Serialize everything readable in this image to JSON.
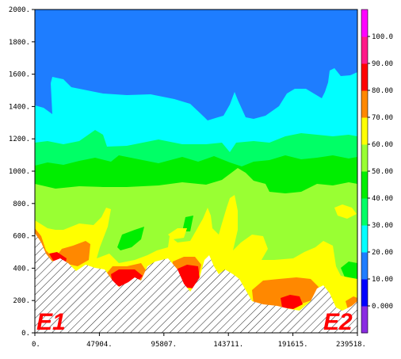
{
  "chart_data": {
    "type": "filled-contour",
    "title": "",
    "xlabel": "",
    "ylabel": "",
    "x_ticks": [
      "0.",
      "47904.",
      "95807.",
      "143711.",
      "191615.",
      "239518."
    ],
    "y_ticks": [
      "0.",
      "200.",
      "400.",
      "600.",
      "800.",
      "1000.",
      "1200.",
      "1400.",
      "1600.",
      "1800.",
      "2000."
    ],
    "xlim": [
      0,
      239518
    ],
    "ylim": [
      0,
      2000
    ],
    "colorbar": {
      "labels": [
        "0.000",
        "10.00",
        "20.00",
        "30.00",
        "40.00",
        "50.00",
        "60.00",
        "70.00",
        "80.00",
        "90.00",
        "100.0"
      ],
      "colors": [
        "#8a2be2",
        "#0000ff",
        "#1e7dff",
        "#00ffff",
        "#00ff66",
        "#00ee00",
        "#99ff33",
        "#ffff00",
        "#ff8800",
        "#ff0000",
        "#ff1a88",
        "#ff00ff"
      ]
    },
    "terrain_hatched": true,
    "end_labels": [
      "E1",
      "E2"
    ]
  }
}
